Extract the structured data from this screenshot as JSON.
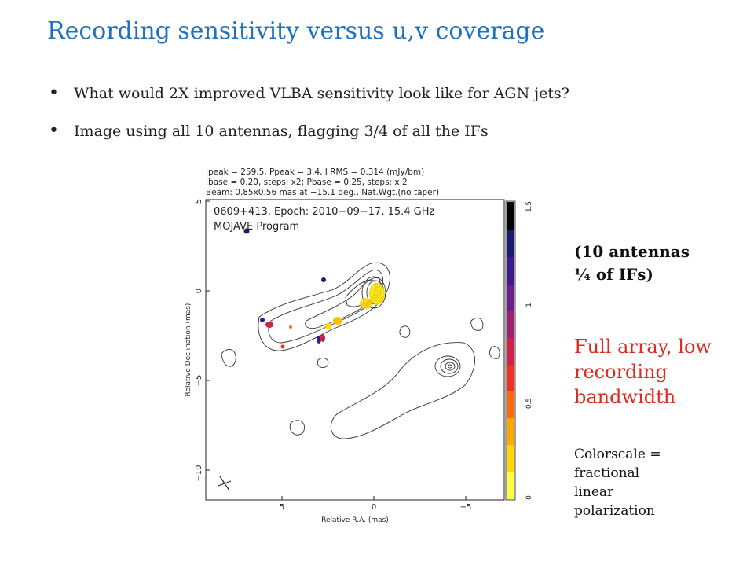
{
  "title": "Recording sensitivity versus u,v coverage",
  "bullets": [
    "What would 2X improved VLBA sensitivity look like for AGN jets?",
    "Image using all 10 antennas, flagging 3/4 of all the IFs"
  ],
  "figure": {
    "header_lines": [
      "Ipeak = 259.5, Ppeak = 3.4, I RMS = 0.314 (mJy/bm)",
      "Ibase = 0.20, steps: x2; Pbase = 0.25, steps: x 2",
      "Beam: 0.85x0.56 mas at −15.1 deg., Nat.Wgt.(no taper)"
    ],
    "source_label": "0609+413, Epoch: 2010−09−17, 15.4 GHz",
    "program_label": "MOJAVE Program",
    "xlabel": "Relative R.A. (mas)",
    "ylabel": "Relative Declination (mas)",
    "x_ticks": [
      "5",
      "0",
      "−5"
    ],
    "y_ticks": [
      "5",
      "0",
      "−5",
      "−10"
    ],
    "colorbar_ticks": [
      "1.5",
      "1",
      "0.5",
      "0"
    ],
    "colorbar_colors": [
      "#000000",
      "#1a1a6e",
      "#3a1a8c",
      "#6a1e8a",
      "#9e2070",
      "#d0204a",
      "#f03020",
      "#ff6a10",
      "#ffa800",
      "#ffd800",
      "#ffff40"
    ]
  },
  "side_note": [
    "(10 antennas",
    "¼ of IFs)"
  ],
  "callout": [
    "Full array, low",
    "recording",
    "bandwidth"
  ],
  "caption": [
    "Colorscale =",
    "fractional",
    "linear",
    "polarization"
  ]
}
